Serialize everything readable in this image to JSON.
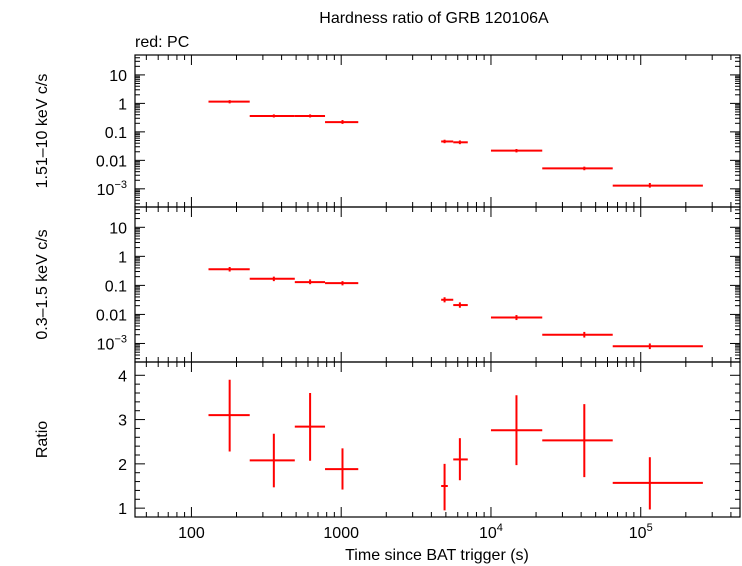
{
  "chart_data": {
    "type": "scatter",
    "title": "Hardness ratio of GRB 120106A",
    "legend_note": "red: PC",
    "xlabel": "Time since BAT trigger (s)",
    "xscale": "log",
    "xlim": [
      42,
      460000
    ],
    "x_tick_labels": [
      {
        "value": 100,
        "label": "100"
      },
      {
        "value": 1000,
        "label": "1000"
      },
      {
        "value": 10000,
        "label": "10",
        "sup": "4"
      },
      {
        "value": 100000,
        "label": "10",
        "sup": "5"
      }
    ],
    "series_color": "#ff0000",
    "panels": [
      {
        "name": "hard-band",
        "ylabel": "1.51–10 keV c/s",
        "yscale": "log",
        "ylim": [
          0.00023,
          50
        ],
        "y_tick_labels": [
          {
            "value": 10,
            "label": "10"
          },
          {
            "value": 1,
            "label": "1"
          },
          {
            "value": 0.1,
            "label": "0.1"
          },
          {
            "value": 0.01,
            "label": "0.01"
          },
          {
            "value": 0.001,
            "label": "10",
            "sup": "−3"
          }
        ],
        "points": [
          {
            "x": 180,
            "xlo": 130,
            "xhi": 245,
            "y": 1.15,
            "ylo": 1.0,
            "yhi": 1.3
          },
          {
            "x": 355,
            "xlo": 245,
            "xhi": 490,
            "y": 0.36,
            "ylo": 0.32,
            "yhi": 0.41
          },
          {
            "x": 620,
            "xlo": 490,
            "xhi": 780,
            "y": 0.36,
            "ylo": 0.32,
            "yhi": 0.41
          },
          {
            "x": 1020,
            "xlo": 780,
            "xhi": 1300,
            "y": 0.22,
            "ylo": 0.19,
            "yhi": 0.26
          },
          {
            "x": 4900,
            "xlo": 4650,
            "xhi": 5600,
            "y": 0.046,
            "ylo": 0.04,
            "yhi": 0.053
          },
          {
            "x": 6200,
            "xlo": 5600,
            "xhi": 7000,
            "y": 0.043,
            "ylo": 0.037,
            "yhi": 0.05
          },
          {
            "x": 14800,
            "xlo": 10000,
            "xhi": 22000,
            "y": 0.022,
            "ylo": 0.019,
            "yhi": 0.025
          },
          {
            "x": 42000,
            "xlo": 22000,
            "xhi": 65000,
            "y": 0.0052,
            "ylo": 0.0045,
            "yhi": 0.006
          },
          {
            "x": 115000,
            "xlo": 65000,
            "xhi": 260000,
            "y": 0.0013,
            "ylo": 0.0011,
            "yhi": 0.0016
          }
        ]
      },
      {
        "name": "soft-band",
        "ylabel": "0.3–1.5 keV c/s",
        "yscale": "log",
        "ylim": [
          0.00023,
          50
        ],
        "y_tick_labels": [
          {
            "value": 10,
            "label": "10"
          },
          {
            "value": 1,
            "label": "1"
          },
          {
            "value": 0.1,
            "label": "0.1"
          },
          {
            "value": 0.01,
            "label": "0.01"
          },
          {
            "value": 0.001,
            "label": "10",
            "sup": "−3"
          }
        ],
        "points": [
          {
            "x": 180,
            "xlo": 130,
            "xhi": 245,
            "y": 0.36,
            "ylo": 0.3,
            "yhi": 0.43
          },
          {
            "x": 355,
            "xlo": 245,
            "xhi": 490,
            "y": 0.17,
            "ylo": 0.14,
            "yhi": 0.2
          },
          {
            "x": 620,
            "xlo": 490,
            "xhi": 780,
            "y": 0.13,
            "ylo": 0.11,
            "yhi": 0.16
          },
          {
            "x": 1020,
            "xlo": 780,
            "xhi": 1300,
            "y": 0.12,
            "ylo": 0.1,
            "yhi": 0.14
          },
          {
            "x": 4900,
            "xlo": 4650,
            "xhi": 5600,
            "y": 0.032,
            "ylo": 0.026,
            "yhi": 0.039
          },
          {
            "x": 6200,
            "xlo": 5600,
            "xhi": 7000,
            "y": 0.021,
            "ylo": 0.017,
            "yhi": 0.026
          },
          {
            "x": 14800,
            "xlo": 10000,
            "xhi": 22000,
            "y": 0.0078,
            "ylo": 0.0064,
            "yhi": 0.0095
          },
          {
            "x": 42000,
            "xlo": 22000,
            "xhi": 65000,
            "y": 0.002,
            "ylo": 0.0016,
            "yhi": 0.0025
          },
          {
            "x": 115000,
            "xlo": 65000,
            "xhi": 260000,
            "y": 0.0008,
            "ylo": 0.00064,
            "yhi": 0.001
          }
        ]
      },
      {
        "name": "ratio",
        "ylabel": "Ratio",
        "yscale": "linear",
        "ylim": [
          0.8,
          4.3
        ],
        "y_tick_labels": [
          {
            "value": 1,
            "label": "1"
          },
          {
            "value": 2,
            "label": "2"
          },
          {
            "value": 3,
            "label": "3"
          },
          {
            "value": 4,
            "label": "4"
          }
        ],
        "points": [
          {
            "x": 180,
            "xlo": 130,
            "xhi": 245,
            "y": 3.1,
            "ylo": 2.28,
            "yhi": 3.9
          },
          {
            "x": 355,
            "xlo": 245,
            "xhi": 490,
            "y": 2.08,
            "ylo": 1.47,
            "yhi": 2.68
          },
          {
            "x": 620,
            "xlo": 490,
            "xhi": 780,
            "y": 2.84,
            "ylo": 2.07,
            "yhi": 3.6
          },
          {
            "x": 1020,
            "xlo": 780,
            "xhi": 1300,
            "y": 1.88,
            "ylo": 1.42,
            "yhi": 2.35
          },
          {
            "x": 4900,
            "xlo": 4650,
            "xhi": 5150,
            "y": 1.5,
            "ylo": 0.95,
            "yhi": 2.0
          },
          {
            "x": 6200,
            "xlo": 5600,
            "xhi": 7000,
            "y": 2.1,
            "ylo": 1.63,
            "yhi": 2.58
          },
          {
            "x": 14800,
            "xlo": 10000,
            "xhi": 22000,
            "y": 2.76,
            "ylo": 1.97,
            "yhi": 3.55
          },
          {
            "x": 42000,
            "xlo": 22000,
            "xhi": 65000,
            "y": 2.53,
            "ylo": 1.7,
            "yhi": 3.35
          },
          {
            "x": 115000,
            "xlo": 65000,
            "xhi": 260000,
            "y": 1.57,
            "ylo": 0.97,
            "yhi": 2.15
          }
        ]
      }
    ]
  }
}
